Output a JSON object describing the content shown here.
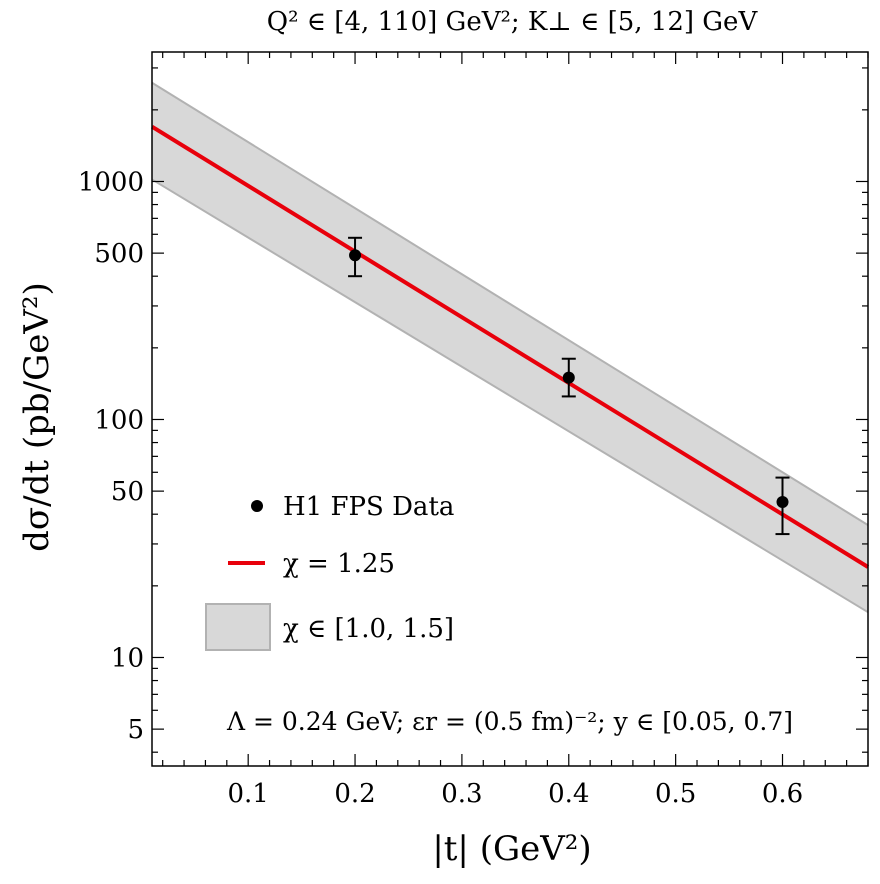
{
  "chart_data": {
    "type": "line",
    "title": "Q² ∈ [4, 110] GeV²;  K⊥ ∈ [5, 12] GeV",
    "xlabel": "|t| (GeV²)",
    "ylabel": "dσ/dt (pb/GeV²)",
    "xlim": [
      0.01,
      0.68
    ],
    "ylim": [
      3.5,
      3500
    ],
    "yscale": "log",
    "x_ticks": [
      "0.1",
      "0.2",
      "0.3",
      "0.4",
      "0.5",
      "0.6"
    ],
    "y_ticks": [
      "5",
      "10",
      "50",
      "100",
      "500",
      "1000"
    ],
    "annotation": "Λ = 0.24 GeV;  εr = (0.5 fm)⁻²;  y ∈ [0.05, 0.7]",
    "legend": {
      "placement": "lower-left",
      "entries": [
        "H1 FPS Data",
        "χ = 1.25",
        "χ ∈ [1.0, 1.5]"
      ]
    },
    "series": [
      {
        "name": "H1 FPS Data",
        "kind": "points",
        "x": [
          0.2,
          0.4,
          0.6
        ],
        "y": [
          490,
          150,
          45
        ],
        "yerr_low": [
          400,
          125,
          33
        ],
        "yerr_high": [
          580,
          180,
          57
        ]
      },
      {
        "name": "χ = 1.25",
        "kind": "line",
        "color": "#e8000b",
        "x": [
          0.01,
          0.68
        ],
        "y": [
          1700,
          24
        ]
      },
      {
        "name": "χ ∈ [1.0, 1.5]",
        "kind": "band",
        "color": "#d8d8d8",
        "x": [
          0.01,
          0.68
        ],
        "upper": [
          2600,
          36
        ],
        "lower": [
          1020,
          15.5
        ]
      }
    ]
  }
}
